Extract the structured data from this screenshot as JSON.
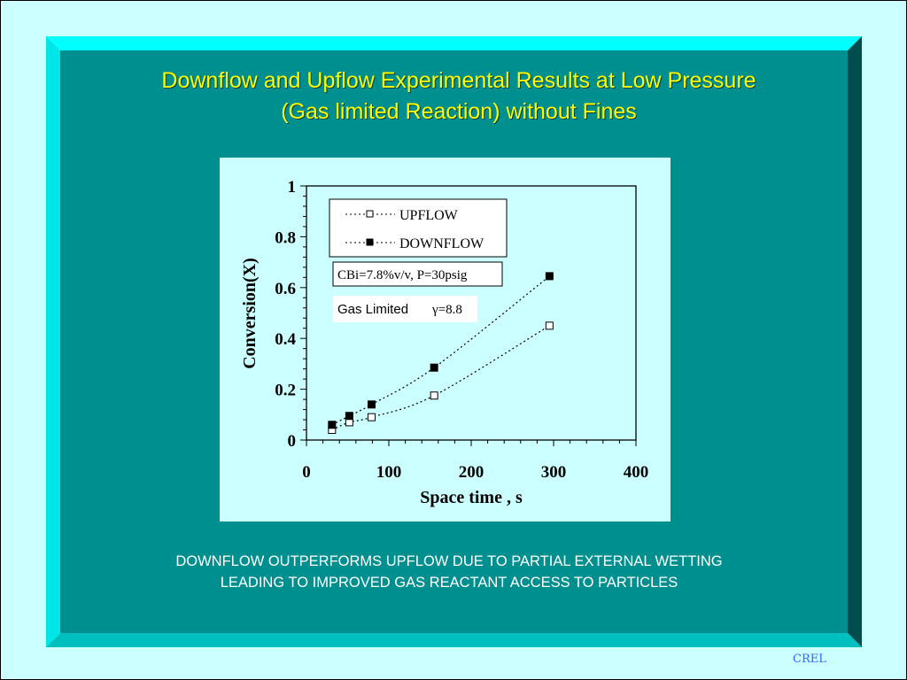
{
  "slide": {
    "title_line1": "Downflow and Upflow Experimental Results at Low Pressure",
    "title_line2": "(Gas limited Reaction) without Fines",
    "caption_line1": "DOWNFLOW OUTPERFORMS UPFLOW DUE TO PARTIAL EXTERNAL WETTING",
    "caption_line2": "LEADING TO IMPROVED GAS REACTANT ACCESS TO PARTICLES",
    "footer": "CREL",
    "colors": {
      "background": "#ccffff",
      "panel": "#008f8f",
      "title": "#ffff00",
      "footer": "#3366ff"
    }
  },
  "chart_data": {
    "type": "scatter",
    "xlabel": "Space time , s",
    "ylabel": "Conversion(X)",
    "xlim": [
      0,
      400
    ],
    "ylim": [
      0,
      1
    ],
    "x_ticks": [
      "0",
      "100",
      "200",
      "300",
      "400"
    ],
    "y_ticks": [
      "0",
      "0.2",
      "0.4",
      "0.6",
      "0.8",
      "1"
    ],
    "series": [
      {
        "name": "UPFLOW",
        "marker": "open-square",
        "line": "dotted",
        "x": [
          31,
          52,
          79,
          155,
          295
        ],
        "y": [
          0.04,
          0.07,
          0.09,
          0.175,
          0.45
        ]
      },
      {
        "name": "DOWNFLOW",
        "marker": "filled-square",
        "line": "dotted",
        "x": [
          31,
          52,
          79,
          155,
          295
        ],
        "y": [
          0.06,
          0.095,
          0.14,
          0.285,
          0.645
        ]
      }
    ],
    "legend_position": "top-left",
    "annotations": {
      "conditions": "CBi=7.8%v/v, P=30psig",
      "regime_label": "Gas Limited",
      "gamma": "γ=8.8"
    },
    "grid": false
  }
}
